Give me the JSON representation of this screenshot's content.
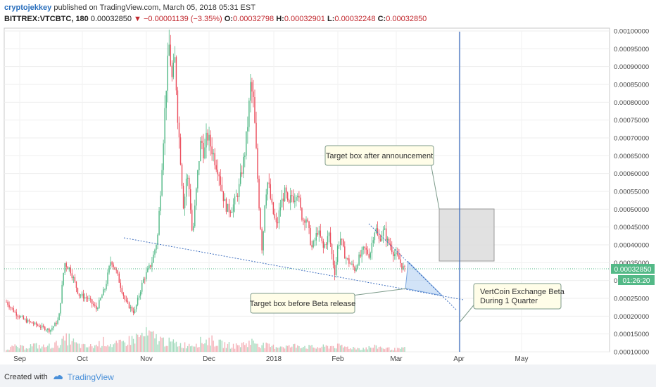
{
  "header": {
    "author": "cryptojekkey",
    "published": "published on TradingView.com, March 05, 2018 05:31 EST",
    "symbol": "BITTREX:VTCBTC, 180",
    "last": "0.00032850",
    "change": "▼ −0.00001139 (−3.35%)",
    "o_label": "O:",
    "o_val": "0.00032798",
    "h_label": "H:",
    "h_val": "0.00032901",
    "l_label": "L:",
    "l_val": "0.00032248",
    "c_label": "C:",
    "c_val": "0.00032850"
  },
  "footer": {
    "created": "Created with",
    "brand": "TradingView"
  },
  "colors": {
    "up": "#53b987",
    "down": "#eb4d5c",
    "line": "#3f6fbf",
    "price_tag": "#53b987"
  },
  "chart_data": {
    "type": "candlestick",
    "ylim": [
      0.0001,
      0.001
    ],
    "y_ticks": [
      "0.00100000",
      "0.00095000",
      "0.00090000",
      "0.00085000",
      "0.00080000",
      "0.00075000",
      "0.00070000",
      "0.00065000",
      "0.00060000",
      "0.00055000",
      "0.00050000",
      "0.00045000",
      "0.00040000",
      "0.00035000",
      "0.00030000",
      "0.00025000",
      "0.00020000",
      "0.00015000",
      "0.00010000"
    ],
    "x_ticks": [
      "Sep",
      "Oct",
      "Nov",
      "Dec",
      "2018",
      "Feb",
      "Mar",
      "Apr",
      "May"
    ],
    "last_price_label": "0.00032850",
    "countdown_label": "01:26:20",
    "price_path": [
      [
        0,
        0.00024
      ],
      [
        3,
        0.00021
      ],
      [
        6,
        0.00019
      ],
      [
        9,
        0.00018
      ],
      [
        12,
        0.00017
      ],
      [
        15,
        0.00016
      ],
      [
        18,
        0.00019
      ],
      [
        20,
        0.00035
      ],
      [
        22,
        0.00033
      ],
      [
        25,
        0.00026
      ],
      [
        28,
        0.00025
      ],
      [
        31,
        0.00022
      ],
      [
        34,
        0.00028
      ],
      [
        36,
        0.00036
      ],
      [
        38,
        0.00032
      ],
      [
        41,
        0.00024
      ],
      [
        44,
        0.00021
      ],
      [
        47,
        0.0003
      ],
      [
        50,
        0.00035
      ],
      [
        52,
        0.00042
      ],
      [
        53,
        0.00055
      ],
      [
        54,
        0.0007
      ],
      [
        55,
        0.00085
      ],
      [
        56,
        0.00096
      ],
      [
        57,
        0.00086
      ],
      [
        58,
        0.00092
      ],
      [
        59,
        0.00075
      ],
      [
        60,
        0.00063
      ],
      [
        61,
        0.0005
      ],
      [
        62,
        0.0006
      ],
      [
        63,
        0.00055
      ],
      [
        64,
        0.00042
      ],
      [
        66,
        0.00062
      ],
      [
        67,
        0.0007
      ],
      [
        68,
        0.00065
      ],
      [
        69,
        0.00071
      ],
      [
        71,
        0.00066
      ],
      [
        72,
        0.00063
      ],
      [
        73,
        0.00061
      ],
      [
        74,
        0.00056
      ],
      [
        75,
        0.00052
      ],
      [
        76,
        0.0005
      ],
      [
        77,
        0.0005
      ],
      [
        78,
        0.00051
      ],
      [
        79,
        0.00053
      ],
      [
        80,
        0.00056
      ],
      [
        81,
        0.00061
      ],
      [
        82,
        0.00066
      ],
      [
        83,
        0.00074
      ],
      [
        84,
        0.00085
      ],
      [
        85,
        0.0008
      ],
      [
        86,
        0.00065
      ],
      [
        87,
        0.0005
      ],
      [
        88,
        0.00038
      ],
      [
        89,
        0.00054
      ],
      [
        90,
        0.00058
      ],
      [
        91,
        0.00052
      ],
      [
        92,
        0.00048
      ],
      [
        93,
        0.00045
      ],
      [
        94,
        0.0005
      ],
      [
        95,
        0.00053
      ],
      [
        96,
        0.00055
      ],
      [
        97,
        0.0005
      ],
      [
        98,
        0.00054
      ],
      [
        99,
        0.00053
      ],
      [
        100,
        0.00056
      ],
      [
        101,
        0.0005
      ],
      [
        102,
        0.00047
      ],
      [
        103,
        0.00048
      ],
      [
        104,
        0.00044
      ],
      [
        105,
        0.00039
      ],
      [
        106,
        0.00041
      ],
      [
        107,
        0.00044
      ],
      [
        108,
        0.00042
      ],
      [
        109,
        0.00039
      ],
      [
        110,
        0.00041
      ],
      [
        111,
        0.00043
      ],
      [
        112,
        0.00037
      ],
      [
        113,
        0.00032
      ],
      [
        114,
        0.0004
      ],
      [
        115,
        0.00042
      ],
      [
        116,
        0.00038
      ],
      [
        117,
        0.00036
      ],
      [
        118,
        0.00035
      ],
      [
        119,
        0.00034
      ],
      [
        120,
        0.00033
      ],
      [
        121,
        0.00036
      ],
      [
        122,
        0.00037
      ],
      [
        123,
        0.00039
      ],
      [
        124,
        0.00038
      ],
      [
        125,
        0.00037
      ],
      [
        126,
        0.00042
      ],
      [
        127,
        0.00045
      ],
      [
        128,
        0.00041
      ],
      [
        129,
        0.00043
      ],
      [
        130,
        0.00044
      ],
      [
        131,
        0.00041
      ],
      [
        132,
        0.0004
      ],
      [
        133,
        0.00038
      ],
      [
        134,
        0.00037
      ],
      [
        135,
        0.00036
      ],
      [
        136,
        0.00034
      ],
      [
        137,
        0.00033
      ]
    ],
    "volume_path": [
      0.2,
      0.3,
      0.25,
      0.4,
      0.3,
      0.35,
      0.5,
      0.8,
      0.4,
      0.3,
      0.35,
      0.6,
      0.4,
      0.5,
      0.7,
      0.9,
      1.0,
      0.8,
      0.6,
      0.5,
      0.4,
      0.45,
      0.6,
      0.7,
      0.5,
      0.4,
      0.35,
      0.5,
      0.6,
      0.4,
      0.3,
      0.35,
      0.3,
      0.4,
      0.3,
      0.25,
      0.3,
      0.35,
      0.3,
      0.25,
      0.2,
      0.25,
      0.3,
      0.2,
      0.15,
      0.2
    ],
    "annotations": [
      {
        "text": "Target box after announcement"
      },
      {
        "text": "Target box before Beta release"
      },
      {
        "text_lines": [
          "VertCoin Exchange Beta",
          "During 1 Quarter"
        ]
      }
    ]
  }
}
